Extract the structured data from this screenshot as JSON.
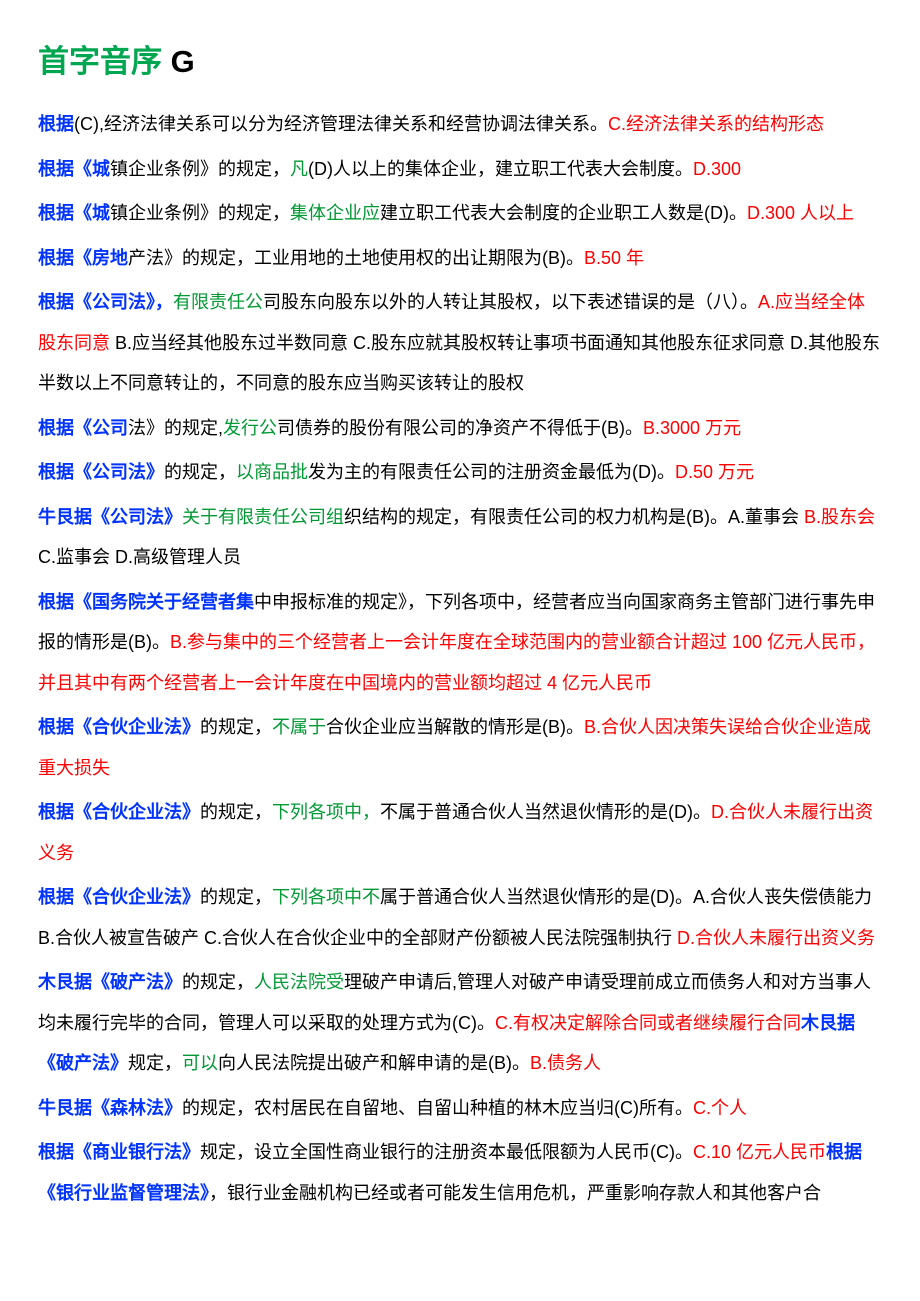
{
  "title_green": "首字音序",
  "title_letter": " G",
  "paragraphs": [
    {
      "segments": [
        {
          "cls": "blue-bold",
          "text": "根据"
        },
        {
          "cls": "black",
          "text": "(C),经济法律关系可以分为经济管理法律关系和经营协调法律关系。"
        },
        {
          "cls": "red",
          "text": "C.经济法律关系的结构形态"
        }
      ]
    },
    {
      "segments": [
        {
          "cls": "blue-bold",
          "text": "根据《城"
        },
        {
          "cls": "black",
          "text": "镇企业条例》的规定，"
        },
        {
          "cls": "green",
          "text": "凡"
        },
        {
          "cls": "black",
          "text": "(D)人以上的集体企业，建立职工代表大会制度。"
        },
        {
          "cls": "red",
          "text": "D.300"
        }
      ]
    },
    {
      "segments": [
        {
          "cls": "blue-bold",
          "text": "根据《城"
        },
        {
          "cls": "black",
          "text": "镇企业条例》的规定，"
        },
        {
          "cls": "green",
          "text": "集体企业应"
        },
        {
          "cls": "black",
          "text": "建立职工代表大会制度的企业职工人数是(D)。"
        },
        {
          "cls": "red",
          "text": "D.300 人以上"
        }
      ]
    },
    {
      "segments": [
        {
          "cls": "blue-bold",
          "text": "根据《房地"
        },
        {
          "cls": "black",
          "text": "产法》的规定，工业用地的土地使用权的出让期限为(B)。"
        },
        {
          "cls": "red",
          "text": "B.50 年"
        }
      ]
    },
    {
      "segments": [
        {
          "cls": "blue-bold",
          "text": "根据《公司法》，"
        },
        {
          "cls": "green",
          "text": "有限责任公"
        },
        {
          "cls": "black",
          "text": "司股东向股东以外的人转让其股权，以下表述错误的是（八）。"
        },
        {
          "cls": "red",
          "text": "A.应当经全体股东同意 "
        },
        {
          "cls": "black",
          "text": "B.应当经其他股东过半数同意 C.股东应就其股权转让事项书面通知其他股东征求同意 D.其他股东半数以上不同意转让的，不同意的股东应当购买该转让的股权"
        }
      ]
    },
    {
      "segments": [
        {
          "cls": "blue-bold",
          "text": "根据《公司"
        },
        {
          "cls": "black",
          "text": "法》的规定,"
        },
        {
          "cls": "green",
          "text": "发行公"
        },
        {
          "cls": "black",
          "text": "司债券的股份有限公司的净资产不得低于(B)。"
        },
        {
          "cls": "red",
          "text": "B.3000 万元"
        }
      ]
    },
    {
      "segments": [
        {
          "cls": "blue-bold",
          "text": "根据《公司法》"
        },
        {
          "cls": "black",
          "text": "的规定，"
        },
        {
          "cls": "green",
          "text": "以商品批"
        },
        {
          "cls": "black",
          "text": "发为主的有限责任公司的注册资金最低为(D)。"
        },
        {
          "cls": "red",
          "text": "D.50 万元"
        }
      ]
    },
    {
      "segments": [
        {
          "cls": "blue-bold",
          "text": "牛艮据《公司法》"
        },
        {
          "cls": "green",
          "text": "关于有限责任公司组"
        },
        {
          "cls": "black",
          "text": "织结构的规定，有限责任公司的权力机构是(B)。A.董事会 "
        },
        {
          "cls": "red",
          "text": "B.股东会 "
        },
        {
          "cls": "black",
          "text": "C.监事会 D.高级管理人员"
        }
      ]
    },
    {
      "segments": [
        {
          "cls": "blue-bold",
          "text": "根据《国务院关于经营者集"
        },
        {
          "cls": "black",
          "text": "中申报标准的规定》，下列各项中，经营者应当向国家商务主管部门进行事先申报的情形是(B)。"
        },
        {
          "cls": "red",
          "text": "B.参与集中的三个经营者上一会计年度在全球范围内的营业额合计超过 100 亿元人民币，并且其中有两个经营者上一会计年度在中国境内的营业额均超过 4 亿元人民币"
        }
      ]
    },
    {
      "segments": [
        {
          "cls": "blue-bold",
          "text": "根据《合伙企业法》"
        },
        {
          "cls": "black",
          "text": "的规定，"
        },
        {
          "cls": "green",
          "text": "不属于"
        },
        {
          "cls": "black",
          "text": "合伙企业应当解散的情形是(B)。"
        },
        {
          "cls": "red",
          "text": "B.合伙人因决策失误给合伙企业造成重大损失"
        }
      ]
    },
    {
      "segments": [
        {
          "cls": "blue-bold",
          "text": "根据《合伙企业法》"
        },
        {
          "cls": "black",
          "text": "的规定，"
        },
        {
          "cls": "green",
          "text": "下列各项中，"
        },
        {
          "cls": "black",
          "text": "不属于普通合伙人当然退伙情形的是(D)。"
        },
        {
          "cls": "red",
          "text": "D.合伙人未履行出资义务"
        }
      ]
    },
    {
      "segments": [
        {
          "cls": "blue-bold",
          "text": "根据《合伙企业法》"
        },
        {
          "cls": "black",
          "text": "的规定，"
        },
        {
          "cls": "green",
          "text": "下列各项中不"
        },
        {
          "cls": "black",
          "text": "属于普通合伙人当然退伙情形的是(D)。A.合伙人丧失偿债能力 B.合伙人被宣告破产 C.合伙人在合伙企业中的全部财产份额被人民法院强制执行 "
        },
        {
          "cls": "red",
          "text": "D.合伙人未履行出资义务"
        }
      ]
    },
    {
      "segments": [
        {
          "cls": "blue-bold",
          "text": "木艮据《破产法》"
        },
        {
          "cls": "black",
          "text": "的规定，"
        },
        {
          "cls": "green",
          "text": "人民法院受"
        },
        {
          "cls": "black",
          "text": "理破产申请后,管理人对破产申请受理前成立而债务人和对方当事人均未履行完毕的合同，管理人可以采取的处理方式为(C)。"
        },
        {
          "cls": "red",
          "text": "C.有权决定解除合同或者继续履行合同"
        },
        {
          "cls": "blue-bold",
          "text": "木艮据《破产法》"
        },
        {
          "cls": "black",
          "text": "规定，"
        },
        {
          "cls": "green",
          "text": "可以"
        },
        {
          "cls": "black",
          "text": "向人民法院提出破产和解申请的是(B)。"
        },
        {
          "cls": "red",
          "text": "B.债务人"
        }
      ]
    },
    {
      "segments": [
        {
          "cls": "blue-bold",
          "text": "牛艮据《森林法》"
        },
        {
          "cls": "black",
          "text": "的规定，农村居民在自留地、自留山种植的林木应当归(C)所有。"
        },
        {
          "cls": "red",
          "text": "C.个人"
        }
      ]
    },
    {
      "segments": [
        {
          "cls": "blue-bold",
          "text": "根据《商业银行法》"
        },
        {
          "cls": "black",
          "text": "规定，设立全国性商业银行的注册资本最低限额为人民币(C)。"
        },
        {
          "cls": "red",
          "text": "C.10 亿元人民币"
        },
        {
          "cls": "blue-bold",
          "text": "根据《银行业监督管理法》"
        },
        {
          "cls": "black",
          "text": "，银行业金融机构已经或者可能发生信用危机，严重影响存款人和其他客户合"
        }
      ]
    }
  ]
}
